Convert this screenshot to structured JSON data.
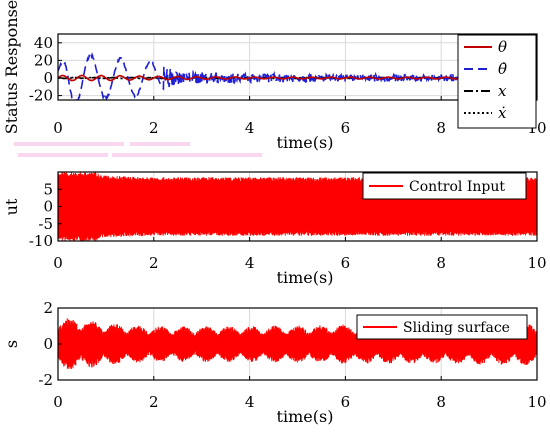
{
  "chart_data": [
    {
      "type": "line",
      "panel": "top",
      "title": "",
      "xlabel": "time(s)",
      "ylabel": "Status Response",
      "xlim": [
        0,
        10
      ],
      "ylim": [
        -25,
        50
      ],
      "xticks": [
        "0",
        "2",
        "4",
        "6",
        "8",
        "10"
      ],
      "yticks": [
        "40",
        "20",
        "0",
        "-20"
      ],
      "ytick_values": [
        40,
        20,
        0,
        -20
      ],
      "grid": true,
      "legend_position": "top-right",
      "series": [
        {
          "name": "θ",
          "color": "#c00000",
          "style": "solid",
          "envelope": {
            "x": [
              0,
              1,
              2,
              4,
              8,
              10
            ],
            "amp": [
              3,
              3,
              2,
              1,
              1,
              1
            ]
          }
        },
        {
          "name": "θ̇",
          "color": "#1f1fd6",
          "style": "dashed",
          "envelope": {
            "x": [
              0,
              0.2,
              0.5,
              1,
              2,
              2.5,
              4,
              6,
              8,
              10
            ],
            "amp": [
              10,
              35,
              30,
              25,
              20,
              8,
              5,
              4,
              4,
              4
            ]
          }
        },
        {
          "name": "x",
          "color": "#000000",
          "style": "dashdot",
          "envelope": {
            "x": [
              0,
              10
            ],
            "amp": [
              0.5,
              0.5
            ]
          }
        },
        {
          "name": "ẋ",
          "color": "#000000",
          "style": "dotted",
          "envelope": {
            "x": [
              0,
              10
            ],
            "amp": [
              0.5,
              0.5
            ]
          }
        }
      ]
    },
    {
      "type": "line",
      "panel": "middle",
      "title": "",
      "xlabel": "time(s)",
      "ylabel": "ut",
      "xlim": [
        0,
        10
      ],
      "ylim": [
        -10,
        10
      ],
      "xticks": [
        "0",
        "2",
        "4",
        "6",
        "8",
        "10"
      ],
      "yticks": [
        "5",
        "0",
        "-5",
        "-10"
      ],
      "ytick_values": [
        5,
        0,
        -5,
        -10
      ],
      "grid": true,
      "legend_position": "top-right",
      "series": [
        {
          "name": "Control Input",
          "color": "#ff0000",
          "style": "solid",
          "envelope": {
            "x": [
              0,
              0.8,
              0.9,
              2,
              4,
              6,
              8,
              10
            ],
            "amp": [
              10,
              10,
              9,
              8.5,
              8.5,
              8.5,
              8.5,
              8.5
            ]
          }
        }
      ]
    },
    {
      "type": "line",
      "panel": "bottom",
      "title": "",
      "xlabel": "time(s)",
      "ylabel": "s",
      "xlim": [
        0,
        10
      ],
      "ylim": [
        -2,
        2
      ],
      "xticks": [
        "0",
        "2",
        "4",
        "6",
        "8",
        "10"
      ],
      "yticks": [
        "2",
        "0",
        "-2"
      ],
      "ytick_values": [
        2,
        0,
        -2
      ],
      "grid": true,
      "legend_position": "top-right",
      "series": [
        {
          "name": "Sliding surface",
          "color": "#ff0000",
          "style": "solid",
          "envelope": {
            "x": [
              0,
              0.5,
              1,
              2,
              4,
              6,
              8,
              10
            ],
            "amp": [
              1.5,
              1.4,
              1.2,
              1.0,
              1.0,
              1.1,
              1.1,
              1.2
            ]
          }
        }
      ]
    }
  ]
}
